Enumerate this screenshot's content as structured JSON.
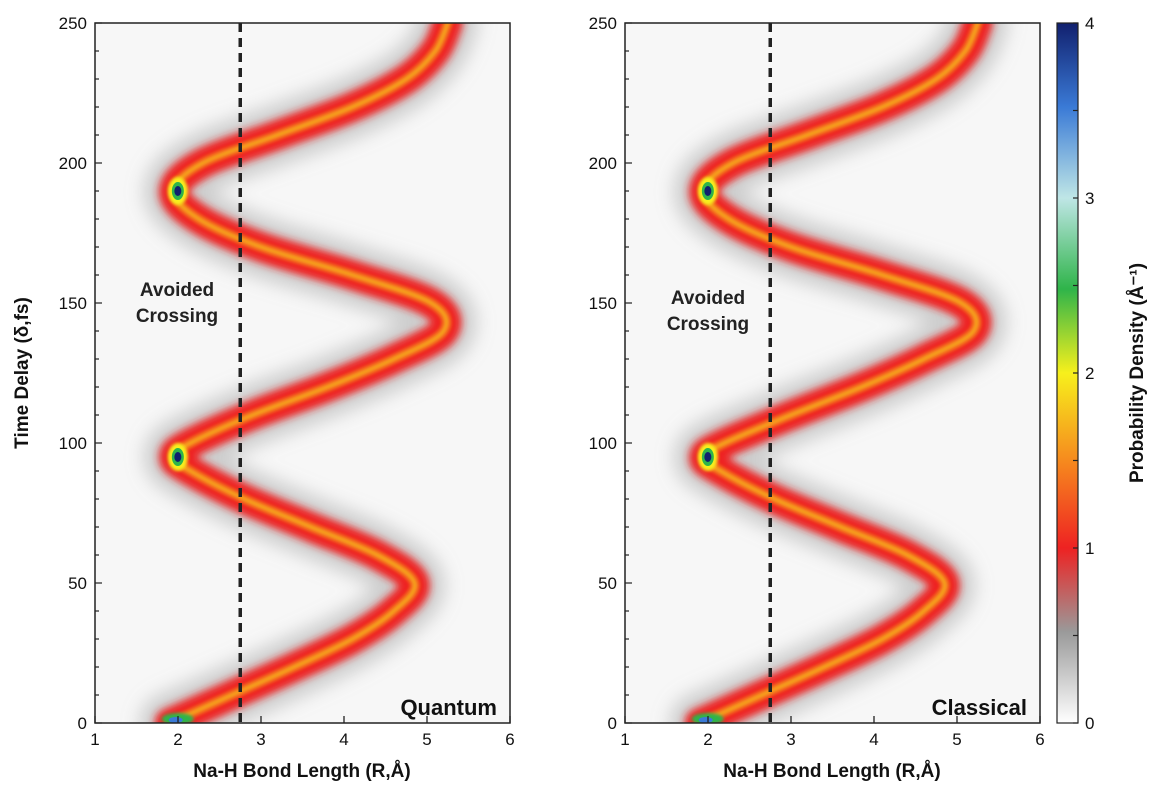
{
  "chart_data": [
    {
      "type": "heatmap",
      "panel_label": "Quantum",
      "xlabel": "Na-H Bond Length (R,Å)",
      "ylabel": "Time Delay (δ,fs)",
      "xlim": [
        1,
        6
      ],
      "ylim": [
        0,
        250
      ],
      "x_ticks": [
        "1",
        "2",
        "3",
        "4",
        "5",
        "6"
      ],
      "y_ticks": [
        "0",
        "50",
        "100",
        "150",
        "200",
        "250"
      ],
      "annotation": [
        "Avoided",
        "Crossing"
      ],
      "crossing_line_x": 2.75,
      "wavepacket_path": {
        "t": [
          0,
          10,
          20,
          30,
          40,
          50,
          60,
          70,
          80,
          90,
          95,
          100,
          110,
          120,
          130,
          140,
          150,
          160,
          170,
          180,
          190,
          200,
          210,
          220,
          230,
          240,
          250
        ],
        "r": [
          1.9,
          2.65,
          3.4,
          4.1,
          4.6,
          4.85,
          4.4,
          3.6,
          2.8,
          2.15,
          1.95,
          2.15,
          2.9,
          3.8,
          4.6,
          5.2,
          5.05,
          4.1,
          3.0,
          2.25,
          1.95,
          2.3,
          3.2,
          4.1,
          4.75,
          5.1,
          5.25
        ]
      }
    },
    {
      "type": "heatmap",
      "panel_label": "Classical",
      "xlabel": "Na-H Bond Length (R,Å)",
      "ylabel": "",
      "xlim": [
        1,
        6
      ],
      "ylim": [
        0,
        250
      ],
      "x_ticks": [
        "1",
        "2",
        "3",
        "4",
        "5",
        "6"
      ],
      "y_ticks": [
        "0",
        "50",
        "100",
        "150",
        "200",
        "250"
      ],
      "annotation": [
        "Avoided",
        "Crossing"
      ],
      "crossing_line_x": 2.75,
      "wavepacket_path": {
        "t": [
          0,
          10,
          20,
          30,
          40,
          50,
          60,
          70,
          80,
          90,
          95,
          100,
          110,
          120,
          130,
          140,
          150,
          160,
          170,
          180,
          190,
          200,
          210,
          220,
          230,
          240,
          250
        ],
        "r": [
          1.9,
          2.65,
          3.4,
          4.1,
          4.6,
          4.85,
          4.4,
          3.6,
          2.8,
          2.15,
          1.95,
          2.2,
          3.0,
          3.85,
          4.6,
          5.2,
          5.05,
          4.1,
          3.0,
          2.25,
          1.95,
          2.3,
          3.2,
          4.1,
          4.75,
          5.1,
          5.25
        ]
      }
    }
  ],
  "colorbar": {
    "label": "Probability Density (Å⁻¹)",
    "range": [
      0,
      4
    ],
    "ticks": [
      "0",
      "1",
      "2",
      "3",
      "4"
    ],
    "colors": [
      "#ffffff",
      "#9a9a9a",
      "#ee2222",
      "#f6861e",
      "#f7f01c",
      "#2fb44a",
      "#bfe6e6",
      "#3a7ad6",
      "#11206e"
    ]
  }
}
